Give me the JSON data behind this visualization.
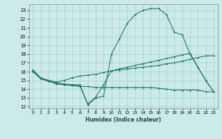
{
  "xlabel": "Humidex (Indice chaleur)",
  "bg_color": "#cceae8",
  "grid_color": "#aad4d0",
  "line_color": "#1a7a6a",
  "xlim": [
    -0.5,
    23.5
  ],
  "ylim": [
    11.8,
    23.7
  ],
  "xticks": [
    0,
    1,
    2,
    3,
    4,
    5,
    6,
    7,
    8,
    9,
    10,
    11,
    12,
    13,
    14,
    15,
    16,
    17,
    18,
    19,
    20,
    21,
    22,
    23
  ],
  "yticks": [
    12,
    13,
    14,
    15,
    16,
    17,
    18,
    19,
    20,
    21,
    22,
    23
  ],
  "lines": [
    {
      "x": [
        0,
        1,
        2,
        3,
        4,
        5,
        6,
        7,
        8,
        9,
        10,
        11,
        12,
        13,
        14,
        15,
        16,
        17,
        18,
        19,
        20,
        21,
        22,
        23
      ],
      "y": [
        16.2,
        15.2,
        15.0,
        14.7,
        14.6,
        14.5,
        14.5,
        12.2,
        13.0,
        13.2,
        18.0,
        19.7,
        21.5,
        22.5,
        23.0,
        23.2,
        23.2,
        22.5,
        20.5,
        20.2,
        18.0,
        16.5,
        15.0,
        13.7
      ]
    },
    {
      "x": [
        0,
        1,
        2,
        3,
        4,
        5,
        6,
        7,
        8,
        9,
        10,
        11,
        12,
        13,
        14,
        15,
        16,
        17,
        18,
        19,
        20,
        21,
        22,
        23
      ],
      "y": [
        16.2,
        15.3,
        15.0,
        14.8,
        15.0,
        15.3,
        15.5,
        15.6,
        15.7,
        15.9,
        16.1,
        16.3,
        16.5,
        16.7,
        16.9,
        17.1,
        17.3,
        17.5,
        17.7,
        17.9,
        18.1,
        16.5,
        15.0,
        13.7
      ]
    },
    {
      "x": [
        0,
        1,
        2,
        3,
        4,
        5,
        6,
        7,
        8,
        9,
        10,
        11,
        12,
        13,
        14,
        15,
        16,
        17,
        18,
        19,
        20,
        21,
        22,
        23
      ],
      "y": [
        16.0,
        15.2,
        14.9,
        14.6,
        14.5,
        14.5,
        14.4,
        12.3,
        13.1,
        14.5,
        16.1,
        16.2,
        16.3,
        16.4,
        16.5,
        16.6,
        16.7,
        16.9,
        17.0,
        17.2,
        17.4,
        17.6,
        17.8,
        17.8
      ]
    },
    {
      "x": [
        0,
        1,
        2,
        3,
        4,
        5,
        6,
        7,
        8,
        9,
        10,
        11,
        12,
        13,
        14,
        15,
        16,
        17,
        18,
        19,
        20,
        21,
        22,
        23
      ],
      "y": [
        16.2,
        15.2,
        15.0,
        14.7,
        14.5,
        14.4,
        14.3,
        14.3,
        14.2,
        14.2,
        14.2,
        14.2,
        14.2,
        14.2,
        14.2,
        14.2,
        14.1,
        14.0,
        13.9,
        13.9,
        13.9,
        13.9,
        13.7,
        13.7
      ]
    }
  ]
}
